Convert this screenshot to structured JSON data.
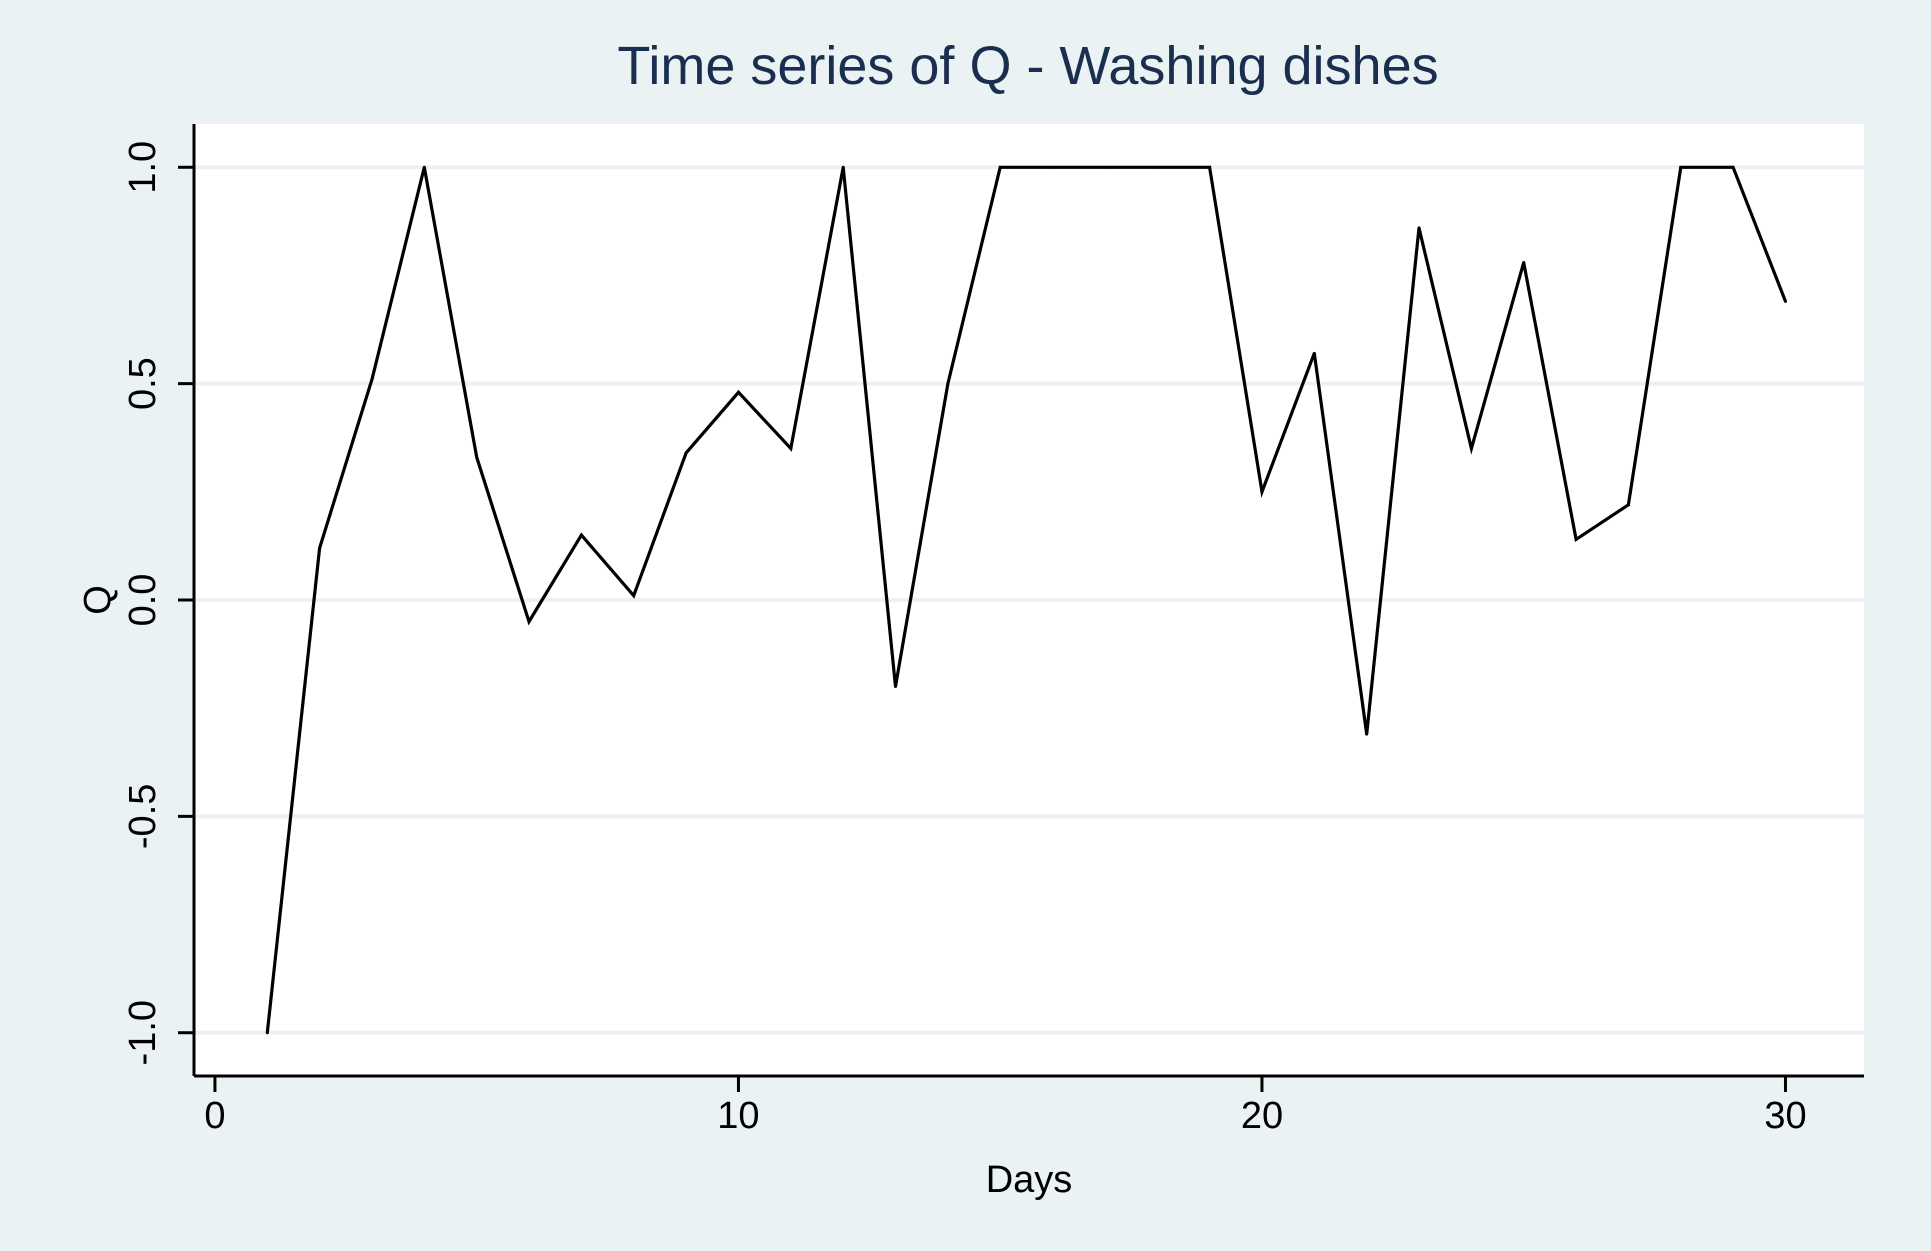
{
  "chart_data": {
    "type": "line",
    "title": "Time series of Q - Washing dishes",
    "xlabel": "Days",
    "ylabel": "Q",
    "xlim": [
      -0.4,
      31.5
    ],
    "ylim": [
      -1.1,
      1.1
    ],
    "x_ticks": [
      0,
      10,
      20,
      30
    ],
    "x_tick_labels": [
      "0",
      "10",
      "20",
      "30"
    ],
    "y_ticks": [
      -1.0,
      -0.5,
      0.0,
      0.5,
      1.0
    ],
    "y_tick_labels": [
      "-1.0",
      "-0.5",
      "0.0",
      "0.5",
      "1.0"
    ],
    "grid": true,
    "legend": "none",
    "colors": {
      "background": "#eaf2f3",
      "plot_background": "#ffffff",
      "gridline": "#eaf2f3",
      "line": "#000000",
      "title": "#1a2e4f",
      "text": "#000000"
    },
    "series": [
      {
        "x": [
          1,
          2,
          3,
          4,
          5,
          6,
          7,
          8,
          9,
          10,
          11,
          12,
          13,
          14,
          15,
          16,
          17,
          18,
          19,
          20,
          21,
          22,
          23,
          24,
          25,
          26,
          27,
          28,
          29,
          30
        ],
        "values": [
          -1.0,
          0.12,
          0.51,
          1.0,
          0.33,
          -0.05,
          0.15,
          0.01,
          0.34,
          0.48,
          0.35,
          1.0,
          -0.2,
          0.5,
          1.0,
          1.0,
          1.0,
          1.0,
          1.0,
          0.25,
          0.57,
          -0.31,
          0.86,
          0.35,
          0.78,
          0.14,
          0.22,
          1.0,
          1.0,
          0.69
        ]
      }
    ]
  }
}
